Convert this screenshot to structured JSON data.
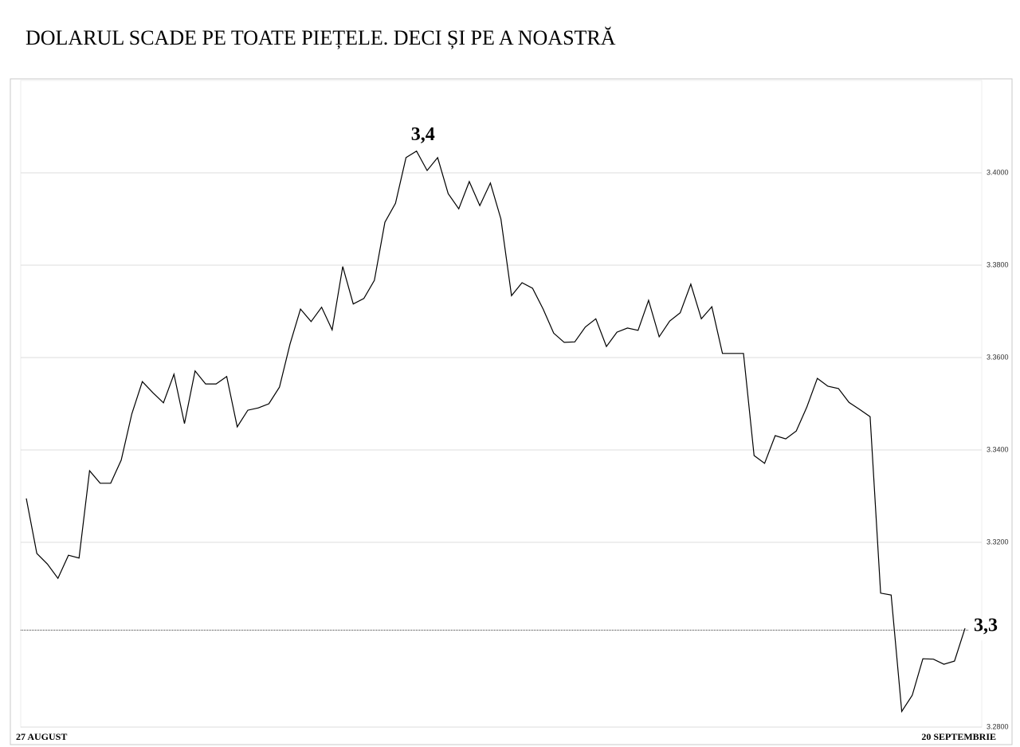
{
  "chart_data": {
    "type": "line",
    "title": "DOLARUL SCADE PE TOATE PIEȚELE. DECI ȘI PE A NOASTRĂ",
    "categories": [
      "27 AUGUST",
      null,
      null,
      null,
      null,
      null,
      null,
      null,
      null,
      null,
      null,
      null,
      null,
      null,
      null,
      null,
      null,
      null,
      null,
      null,
      null,
      null,
      null,
      null,
      null,
      null,
      null,
      null,
      null,
      null,
      null,
      null,
      null,
      null,
      null,
      null,
      null,
      null,
      null,
      null,
      null,
      null,
      null,
      null,
      null,
      null,
      null,
      null,
      null,
      null,
      null,
      null,
      null,
      null,
      null,
      null,
      null,
      null,
      null,
      null,
      null,
      null,
      null,
      null,
      null,
      null,
      null,
      null,
      null,
      null,
      null,
      null,
      null,
      null,
      null,
      null,
      null,
      null,
      null,
      null,
      null,
      null,
      null,
      null,
      null,
      null,
      null,
      null,
      null,
      "20 SEPTEMBRIE"
    ],
    "series": [
      {
        "color": "#000000",
        "values": [
          3.3295,
          3.3176,
          3.3153,
          3.3122,
          3.3172,
          3.3166,
          3.3355,
          3.3328,
          3.3328,
          3.3378,
          3.3478,
          3.3548,
          3.3524,
          3.3502,
          3.3564,
          3.3457,
          3.3571,
          3.3543,
          3.3543,
          3.3559,
          3.345,
          3.3486,
          3.3491,
          3.35,
          3.3536,
          3.3629,
          3.3705,
          3.3678,
          3.3709,
          3.366,
          3.3797,
          3.3716,
          3.3728,
          3.3767,
          3.3893,
          3.3934,
          3.4033,
          3.4047,
          3.4005,
          3.4033,
          3.3955,
          3.3922,
          3.3981,
          3.3929,
          3.3978,
          3.39,
          3.3734,
          3.3762,
          3.375,
          3.3705,
          3.3653,
          3.3633,
          3.3634,
          3.3666,
          3.3684,
          3.3624,
          3.3655,
          3.3664,
          3.3659,
          3.3724,
          3.3645,
          3.3679,
          3.3697,
          3.3759,
          3.3684,
          3.371,
          3.3609,
          3.3609,
          3.3609,
          3.3388,
          3.3371,
          3.3431,
          3.3424,
          3.3441,
          3.3493,
          3.3555,
          3.3538,
          3.3533,
          3.3503,
          3.3488,
          3.3472,
          3.309,
          3.3086,
          3.2834,
          3.2869,
          3.2948,
          3.2947,
          3.2936,
          3.2943,
          3.3014
        ]
      }
    ],
    "ylim": [
      3.28,
      3.42
    ],
    "yticks": [
      {
        "value": 3.28,
        "label": "3.2800"
      },
      {
        "value": 3.32,
        "label": "3.3200"
      },
      {
        "value": 3.34,
        "label": "3.3400"
      },
      {
        "value": 3.36,
        "label": "3.3600"
      },
      {
        "value": 3.38,
        "label": "3.3800"
      },
      {
        "value": 3.4,
        "label": "3.4000"
      }
    ],
    "grid": true,
    "peak_label": "3,4",
    "reference_line": {
      "value": 3.301,
      "label": "3,3"
    }
  }
}
